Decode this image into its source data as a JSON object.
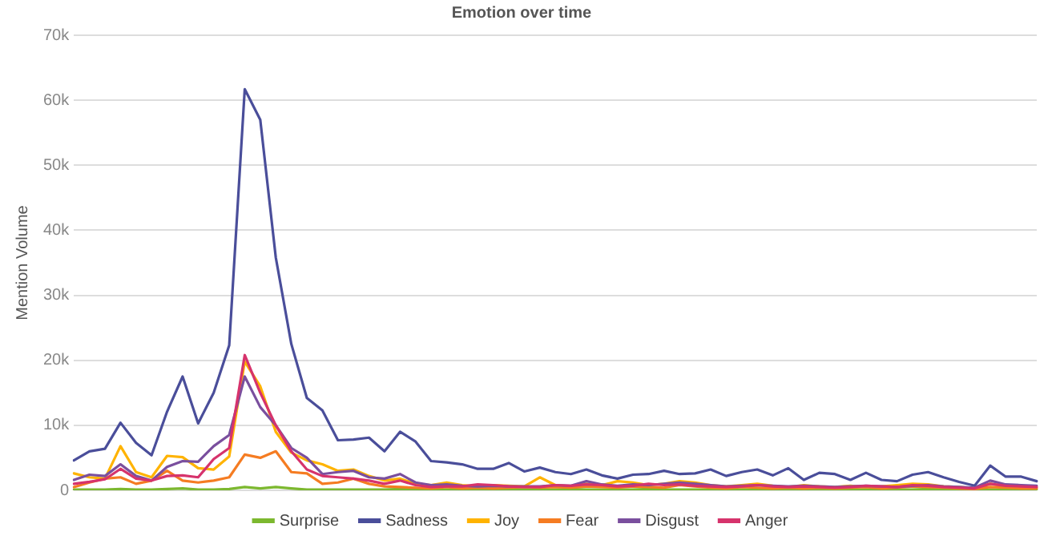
{
  "chart_data": {
    "type": "line",
    "title": "Emotion over time",
    "ylabel": "Mention Volume",
    "categories": [
      null,
      null,
      null,
      null,
      null,
      null,
      null,
      null,
      null,
      null,
      null,
      null,
      null,
      null,
      null,
      null,
      null,
      null,
      null,
      null,
      null,
      null,
      null,
      null,
      null,
      null,
      null,
      null,
      null,
      null,
      null,
      null,
      null,
      null,
      null,
      null,
      null,
      null,
      null,
      null,
      null,
      null,
      null,
      null,
      null,
      null,
      null,
      null,
      null,
      null,
      null,
      null,
      null,
      null,
      null,
      null,
      null,
      null,
      null,
      null,
      null,
      null,
      null
    ],
    "ylim": [
      0,
      70000
    ],
    "yticks": [
      0,
      {
        "value": 10000,
        "label": "10k"
      },
      {
        "value": 20000,
        "label": "20k"
      },
      {
        "value": 30000,
        "label": "30k"
      },
      {
        "value": 40000,
        "label": "40k"
      },
      {
        "value": 50000,
        "label": "50k"
      },
      {
        "value": 60000,
        "label": "60k"
      },
      {
        "value": 70000,
        "label": "70k"
      }
    ],
    "grid": "y",
    "legend": "bottom",
    "marker": "none",
    "line_style": "solid",
    "tick_labels": "y",
    "series": [
      {
        "name": "Surprise",
        "color": "#7cb82f",
        "values": [
          100,
          100,
          100,
          200,
          100,
          100,
          200,
          300,
          100,
          100,
          200,
          500,
          300,
          500,
          300,
          100,
          100,
          100,
          100,
          100,
          100,
          200,
          100,
          100,
          100,
          100,
          100,
          100,
          200,
          100,
          100,
          100,
          200,
          100,
          100,
          100,
          100,
          200,
          100,
          100,
          100,
          100,
          100,
          100,
          100,
          100,
          100,
          100,
          200,
          100,
          100,
          100,
          100,
          100,
          100,
          200,
          100,
          100,
          100,
          100,
          100,
          100,
          100
        ]
      },
      {
        "name": "Sadness",
        "color": "#4a4e9a",
        "values": [
          4600,
          6000,
          6400,
          10400,
          7300,
          5400,
          12100,
          17500,
          10300,
          15000,
          22300,
          61700,
          57000,
          35800,
          22500,
          14200,
          12300,
          7700,
          7800,
          8100,
          6000,
          9000,
          7500,
          4500,
          4300,
          4000,
          3300,
          3300,
          4200,
          2900,
          3500,
          2800,
          2500,
          3200,
          2300,
          1800,
          2400,
          2500,
          3000,
          2500,
          2600,
          3200,
          2200,
          2800,
          3200,
          2300,
          3400,
          1600,
          2700,
          2500,
          1600,
          2700,
          1600,
          1400,
          2400,
          2800,
          2000,
          1300,
          700,
          3800,
          2100,
          2100,
          1400
        ]
      },
      {
        "name": "Joy",
        "color": "#ffb300",
        "values": [
          2600,
          2000,
          1800,
          6800,
          2800,
          2000,
          5300,
          5100,
          3400,
          3200,
          5200,
          19800,
          16000,
          9000,
          5800,
          4600,
          4000,
          3000,
          3200,
          2200,
          1500,
          1800,
          1000,
          800,
          1200,
          800,
          600,
          800,
          700,
          600,
          2000,
          800,
          600,
          1000,
          800,
          1400,
          1200,
          800,
          1000,
          1400,
          1200,
          800,
          600,
          800,
          1000,
          700,
          500,
          800,
          600,
          500,
          700,
          500,
          600,
          800,
          1000,
          900,
          600,
          500,
          300,
          1000,
          600,
          500,
          400
        ]
      },
      {
        "name": "Fear",
        "color": "#f57c22",
        "values": [
          500,
          1200,
          1800,
          2000,
          1000,
          1500,
          3000,
          1500,
          1200,
          1500,
          2000,
          5500,
          5000,
          6000,
          2800,
          2600,
          1000,
          1200,
          1800,
          1000,
          600,
          500,
          400,
          300,
          500,
          300,
          400,
          300,
          400,
          500,
          400,
          500,
          400,
          600,
          500,
          400,
          600,
          500,
          400,
          800,
          600,
          400,
          300,
          500,
          400,
          300,
          400,
          300,
          400,
          300,
          400,
          500,
          300,
          400,
          600,
          500,
          400,
          300,
          200,
          500,
          400,
          300,
          300
        ]
      },
      {
        "name": "Disgust",
        "color": "#7a4f9e",
        "values": [
          1600,
          2400,
          2200,
          4000,
          2200,
          1500,
          3600,
          4500,
          4400,
          6800,
          8500,
          17500,
          12800,
          10000,
          6500,
          5000,
          2500,
          2800,
          3000,
          2000,
          1800,
          2500,
          1200,
          800,
          900,
          700,
          600,
          700,
          600,
          600,
          600,
          800,
          700,
          1400,
          900,
          700,
          900,
          800,
          1000,
          1200,
          1000,
          800,
          600,
          700,
          800,
          700,
          600,
          700,
          600,
          500,
          600,
          700,
          600,
          500,
          700,
          800,
          600,
          500,
          400,
          1500,
          900,
          800,
          700
        ]
      },
      {
        "name": "Anger",
        "color": "#d6336c",
        "values": [
          1000,
          1300,
          1700,
          3300,
          1800,
          1500,
          2200,
          2300,
          2000,
          4800,
          6500,
          20800,
          15000,
          10000,
          6000,
          3200,
          2200,
          2000,
          1800,
          1500,
          1000,
          1500,
          800,
          500,
          600,
          600,
          900,
          800,
          600,
          500,
          500,
          800,
          700,
          900,
          800,
          600,
          700,
          1000,
          800,
          900,
          700,
          600,
          500,
          600,
          800,
          600,
          500,
          600,
          500,
          400,
          500,
          700,
          600,
          500,
          800,
          700,
          500,
          400,
          300,
          1000,
          700,
          600,
          500
        ]
      }
    ]
  }
}
